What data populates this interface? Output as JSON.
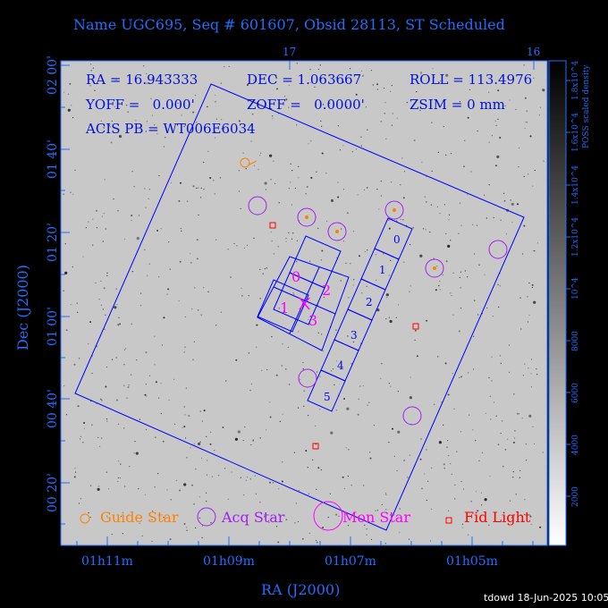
{
  "title": "Name UGC695, Seq # 601607, Obsid 28113, ST Scheduled",
  "info": {
    "ra": "RA = 16.943333",
    "dec": "DEC = 1.063667",
    "roll": "ROLL = 113.4976",
    "yoff": "YOFF =   0.000'",
    "zoff": "ZOFF =   0.0000'",
    "zsim": "ZSIM = 0 mm",
    "acis": "ACIS PB = WT006E6034"
  },
  "x_axis": {
    "label": "RA (J2000)",
    "ticks": [
      "01h11m",
      "01h09m",
      "01h07m",
      "01h05m"
    ],
    "top_ticks": [
      "17",
      "16"
    ]
  },
  "y_axis": {
    "label": "Dec (J2000)",
    "ticks": [
      "02 00'",
      "01 40'",
      "01 20'",
      "01 00'",
      "00 40'",
      "00 20'"
    ]
  },
  "colorbar": {
    "label": "POSS scaled density",
    "ticks": [
      "1.8x10^4",
      "1.6x10^4",
      "1.4x10^4",
      "1.2x10^4",
      "10^4",
      "8000",
      "6000",
      "4000",
      "2000"
    ]
  },
  "ccd_labels": {
    "aciss": [
      "0",
      "1",
      "2",
      "3",
      "4",
      "5"
    ],
    "acisi": [
      "0",
      "1",
      "2",
      "3"
    ]
  },
  "legend": {
    "guide": "Guide Star",
    "acq": "Acq Star",
    "mon": "Mon Star",
    "fid": "Fid Light"
  },
  "colors": {
    "axis": "#1e6fff",
    "info_text": "#0010d8",
    "guide": "#ff8000",
    "acq": "#a020f0",
    "mon": "#ff00ff",
    "fid": "#ff0000",
    "field": "#0000ff",
    "background": "#000000",
    "image": "#c8c8c8"
  },
  "footer": "tdowd 18-Jun-2025 10:05"
}
